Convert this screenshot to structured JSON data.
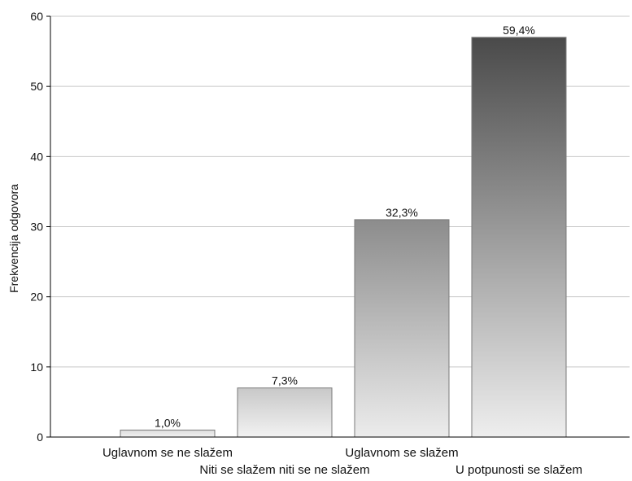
{
  "chart_data": {
    "type": "bar",
    "title": "",
    "xlabel": "",
    "ylabel": "Frekvencija odgovora",
    "ylim": [
      0,
      60
    ],
    "yticks": [
      0,
      10,
      20,
      30,
      40,
      50,
      60
    ],
    "grid": true,
    "categories": [
      "Uglavnom se ne slažem",
      "Niti se slažem niti se ne slažem",
      "Uglavnom se slažem",
      "U potpunosti se slažem"
    ],
    "values": [
      1,
      7,
      31,
      57
    ],
    "data_labels": [
      "1,0%",
      "7,3%",
      "32,3%",
      "59,4%"
    ],
    "bar_colors": [
      [
        "#f2f2f2",
        "#dcdcdc"
      ],
      [
        "#f2f2f2",
        "#c8c8c8"
      ],
      [
        "#ececec",
        "#8c8c8c"
      ],
      [
        "#eeeeee",
        "#4a4a4a"
      ]
    ]
  }
}
